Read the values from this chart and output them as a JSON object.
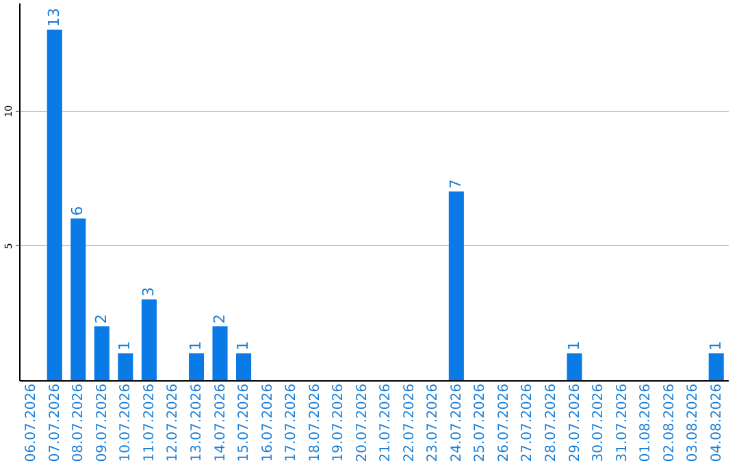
{
  "chart_data": {
    "type": "bar",
    "categories": [
      "06.07.2026",
      "07.07.2026",
      "08.07.2026",
      "09.07.2026",
      "10.07.2026",
      "11.07.2026",
      "12.07.2026",
      "13.07.2026",
      "14.07.2026",
      "15.07.2026",
      "16.07.2026",
      "17.07.2026",
      "18.07.2026",
      "19.07.2026",
      "20.07.2026",
      "21.07.2026",
      "22.07.2026",
      "23.07.2026",
      "24.07.2026",
      "25.07.2026",
      "26.07.2026",
      "27.07.2026",
      "28.07.2026",
      "29.07.2026",
      "30.07.2026",
      "31.07.2026",
      "01.08.2026",
      "02.08.2026",
      "03.08.2026",
      "04.08.2026"
    ],
    "values": [
      null,
      13,
      6,
      2,
      1,
      3,
      null,
      1,
      2,
      1,
      null,
      null,
      null,
      null,
      null,
      null,
      null,
      null,
      7,
      null,
      null,
      null,
      null,
      1,
      null,
      null,
      null,
      null,
      null,
      1
    ],
    "color": "#0a7be6",
    "ylim": [
      0,
      14
    ],
    "yticks": [
      5,
      10
    ],
    "grid": "y",
    "data_labels": true
  }
}
